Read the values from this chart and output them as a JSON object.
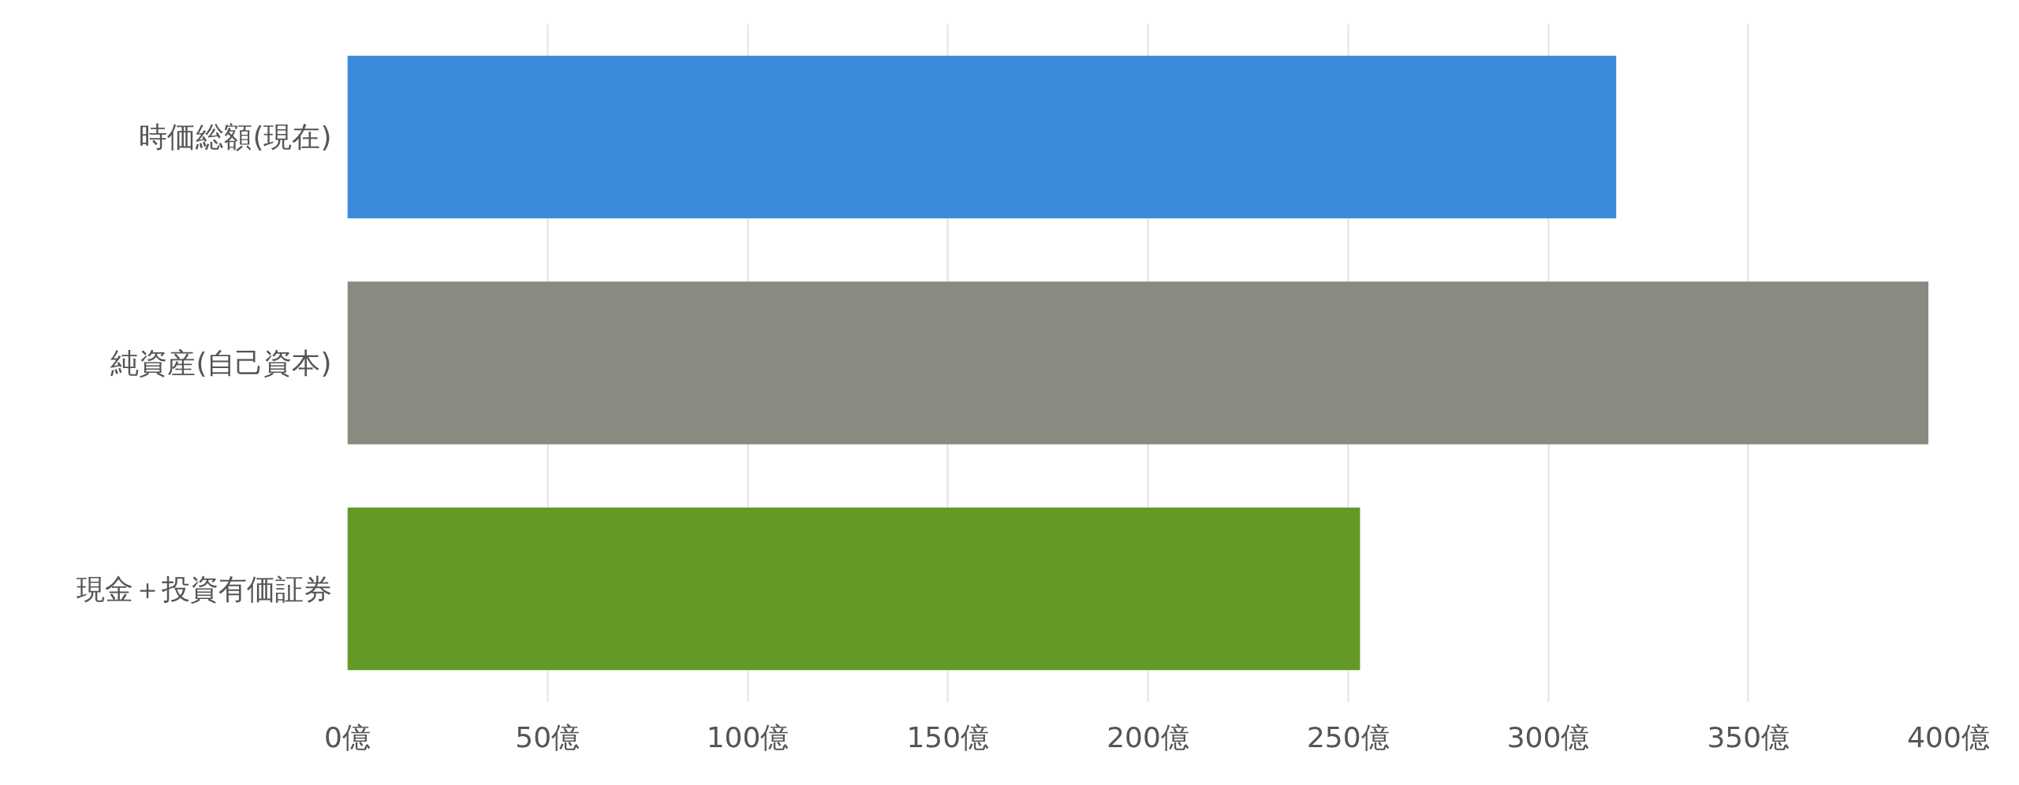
{
  "chart_data": {
    "type": "bar",
    "orientation": "horizontal",
    "categories": [
      "時価総額(現在)",
      "純資産(自己資本)",
      "現金＋投資有価証券"
    ],
    "values": [
      317,
      395,
      253
    ],
    "colors": [
      "#3a8bdc",
      "#8a8a80",
      "#629a25"
    ],
    "xlim": [
      0,
      400
    ],
    "xticks": [
      {
        "value": 0,
        "label": "0億"
      },
      {
        "value": 50,
        "label": "50億"
      },
      {
        "value": 100,
        "label": "100億"
      },
      {
        "value": 150,
        "label": "150億"
      },
      {
        "value": 200,
        "label": "200億"
      },
      {
        "value": 250,
        "label": "250億"
      },
      {
        "value": 300,
        "label": "300億"
      },
      {
        "value": 350,
        "label": "350億"
      },
      {
        "value": 400,
        "label": "400億"
      }
    ],
    "grid": "x"
  }
}
